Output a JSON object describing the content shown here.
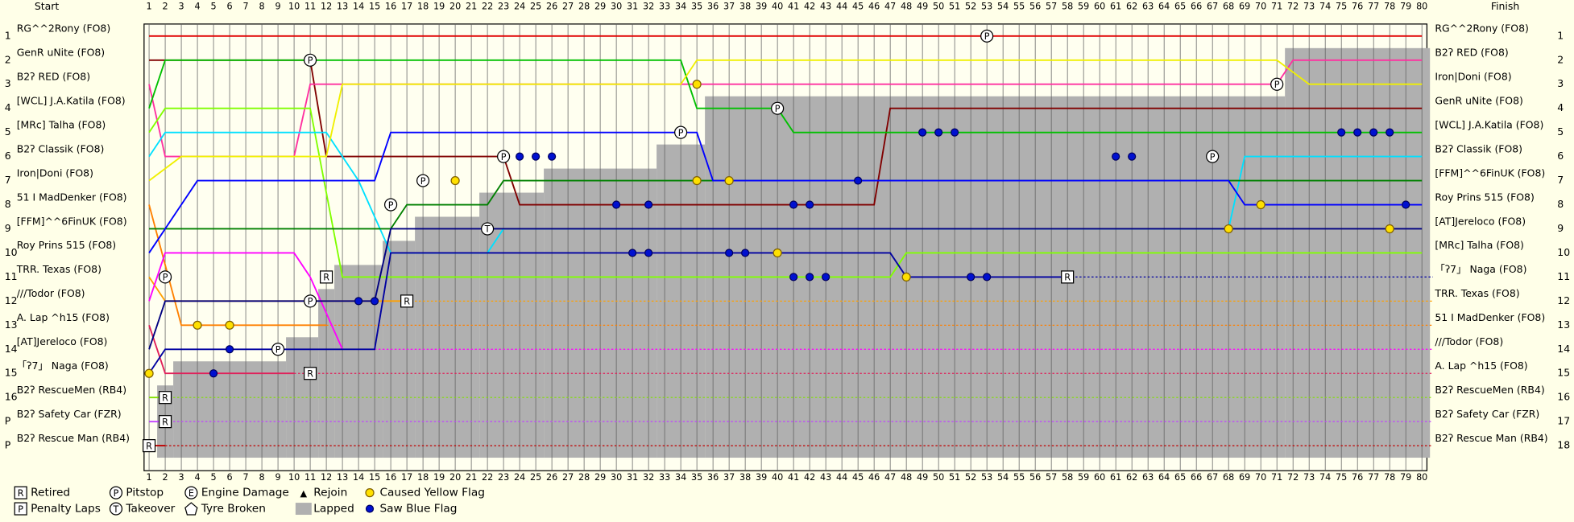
{
  "chart_data": {
    "type": "lap_chart",
    "title": "Start",
    "subtitle": "Finish",
    "xlim": [
      1,
      80
    ],
    "ylim": [
      1,
      18
    ],
    "xticks": [
      1,
      2,
      3,
      4,
      5,
      6,
      7,
      8,
      9,
      10,
      11,
      12,
      13,
      14,
      15,
      16,
      17,
      18,
      19,
      20,
      21,
      22,
      23,
      24,
      25,
      26,
      27,
      28,
      29,
      30,
      31,
      32,
      33,
      34,
      35,
      36,
      37,
      38,
      39,
      40,
      41,
      42,
      43,
      44,
      45,
      46,
      47,
      48,
      49,
      50,
      51,
      52,
      53,
      54,
      55,
      56,
      57,
      58,
      59,
      60,
      61,
      62,
      63,
      64,
      65,
      66,
      67,
      68,
      69,
      70,
      71,
      72,
      73,
      74,
      75,
      76,
      77,
      78,
      79,
      80
    ],
    "start_grid": [
      {
        "label": "1",
        "name": "RG^^2Rony (FO8)"
      },
      {
        "label": "2",
        "name": "GenR uNite (FO8)"
      },
      {
        "label": "3",
        "name": "B2ʔ RED (FO8)"
      },
      {
        "label": "4",
        "name": "[WCL] J.A.Katila (FO8)"
      },
      {
        "label": "5",
        "name": "[MRc] Talha (FO8)"
      },
      {
        "label": "6",
        "name": "B2ʔ Classik (FO8)"
      },
      {
        "label": "7",
        "name": "Iron|Doni (FO8)"
      },
      {
        "label": "8",
        "name": "51 I MadDenker (FO8)"
      },
      {
        "label": "9",
        "name": "[FFM]^^6FinUK (FO8)"
      },
      {
        "label": "10",
        "name": "Roy Prins 515 (FO8)"
      },
      {
        "label": "11",
        "name": "TRR. Texas (FO8)"
      },
      {
        "label": "12",
        "name": "///Todor (FO8)"
      },
      {
        "label": "13",
        "name": "A. Lap ^h15 (FO8)"
      },
      {
        "label": "14",
        "name": "[AT]Jereloco (FO8)"
      },
      {
        "label": "15",
        "name": "「ʔ7」 Naga (FO8)"
      },
      {
        "label": "16",
        "name": "B2ʔ RescueMen (RB4)"
      },
      {
        "label": "P",
        "name": "B2ʔ Safety Car (FZR)"
      },
      {
        "label": "P",
        "name": "B2ʔ Rescue Man (RB4)"
      }
    ],
    "finish": [
      {
        "label": "1",
        "name": "RG^^2Rony (FO8)"
      },
      {
        "label": "2",
        "name": "B2ʔ RED (FO8)"
      },
      {
        "label": "3",
        "name": "Iron|Doni (FO8)"
      },
      {
        "label": "4",
        "name": "GenR uNite (FO8)"
      },
      {
        "label": "5",
        "name": "[WCL] J.A.Katila (FO8)"
      },
      {
        "label": "6",
        "name": "B2ʔ Classik (FO8)"
      },
      {
        "label": "7",
        "name": "[FFM]^^6FinUK (FO8)"
      },
      {
        "label": "8",
        "name": "Roy Prins 515 (FO8)"
      },
      {
        "label": "9",
        "name": "[AT]Jereloco (FO8)"
      },
      {
        "label": "10",
        "name": "[MRc] Talha (FO8)"
      },
      {
        "label": "11",
        "name": "「ʔ7」 Naga (FO8)"
      },
      {
        "label": "12",
        "name": "TRR. Texas (FO8)"
      },
      {
        "label": "13",
        "name": "51 I MadDenker (FO8)"
      },
      {
        "label": "14",
        "name": "///Todor (FO8)"
      },
      {
        "label": "15",
        "name": "A. Lap ^h15 (FO8)"
      },
      {
        "label": "16",
        "name": "B2ʔ RescueMen (RB4)"
      },
      {
        "label": "17",
        "name": "B2ʔ Safety Car (FZR)"
      },
      {
        "label": "18",
        "name": "B2ʔ Rescue Man (RB4)"
      }
    ],
    "lapped": {
      "color": "#b0b0b0",
      "x": [
        2,
        3,
        10,
        12,
        13,
        16,
        18,
        22,
        26,
        33,
        36,
        72,
        80
      ],
      "values": [
        15.5,
        14.5,
        13.5,
        11.5,
        10.5,
        9.5,
        8.5,
        7.5,
        6.5,
        5.5,
        3.5,
        1.5,
        1.5
      ]
    },
    "series": [
      {
        "color": "#e00000",
        "x": [
          1,
          80
        ],
        "values": [
          1,
          1
        ]
      },
      {
        "color": "#800000",
        "x": [
          1,
          11,
          12,
          23,
          24,
          46,
          47,
          80
        ],
        "values": [
          2,
          2,
          6,
          6,
          8,
          8,
          4,
          4
        ]
      },
      {
        "color": "#ff30a0",
        "x": [
          1,
          2,
          10,
          11,
          71,
          72,
          80
        ],
        "values": [
          3,
          6,
          6,
          3,
          3,
          2,
          2
        ]
      },
      {
        "color": "#00c000",
        "x": [
          1,
          2,
          34,
          35,
          40,
          41,
          80
        ],
        "values": [
          4,
          2,
          2,
          4,
          4,
          5,
          5
        ]
      },
      {
        "color": "#80ff00",
        "x": [
          1,
          2,
          11,
          13,
          47,
          48,
          80
        ],
        "values": [
          5,
          4,
          4,
          11,
          11,
          10,
          10
        ]
      },
      {
        "color": "#00e0ff",
        "x": [
          1,
          2,
          12,
          14,
          16,
          22,
          23,
          68,
          69,
          80
        ],
        "values": [
          6,
          5,
          5,
          7,
          10,
          10,
          9,
          9,
          6,
          6
        ]
      },
      {
        "color": "#f0f000",
        "x": [
          1,
          3,
          12,
          13,
          34,
          35,
          71,
          73,
          80
        ],
        "values": [
          7,
          6,
          6,
          3,
          3,
          2,
          2,
          3,
          3
        ]
      },
      {
        "color": "#ff8000",
        "x": [
          1,
          3,
          10,
          12
        ],
        "values": [
          8,
          13,
          13,
          13
        ]
      },
      {
        "color": "#008000",
        "x": [
          1,
          2,
          16,
          17,
          22,
          23,
          80
        ],
        "values": [
          9,
          9,
          9,
          8,
          8,
          7,
          7
        ]
      },
      {
        "color": "#0000ff",
        "x": [
          1,
          3,
          4,
          15,
          16,
          35,
          36,
          68,
          69,
          80
        ],
        "values": [
          10,
          8,
          7,
          7,
          5,
          5,
          7,
          7,
          8,
          8
        ]
      },
      {
        "color": "#ffa000",
        "x": [
          1,
          2,
          16,
          17
        ],
        "values": [
          11,
          12,
          12,
          12
        ]
      },
      {
        "color": "#ff00ff",
        "x": [
          1,
          2,
          10,
          11,
          13
        ],
        "values": [
          12,
          10,
          10,
          11,
          14
        ]
      },
      {
        "color": "#e0205a",
        "x": [
          1,
          2,
          10
        ],
        "values": [
          13,
          15,
          15
        ]
      },
      {
        "color": "#000080",
        "x": [
          1,
          2,
          15,
          16,
          80
        ],
        "values": [
          14,
          12,
          12,
          9,
          9
        ]
      },
      {
        "color": "#0000a0",
        "x": [
          1,
          2,
          15,
          16,
          47,
          48,
          58
        ],
        "values": [
          15,
          14,
          14,
          10,
          10,
          11,
          11
        ]
      },
      {
        "color": "#80e000",
        "x": [
          1,
          2
        ],
        "values": [
          16,
          16
        ]
      },
      {
        "color": "#c040ff",
        "x": [
          1,
          2
        ],
        "values": [
          17,
          17
        ]
      },
      {
        "color": "#c00000",
        "x": [
          1,
          2
        ],
        "values": [
          18,
          18
        ]
      }
    ],
    "legend": [
      {
        "kind": "retired",
        "symbol": "R",
        "label": "Retired"
      },
      {
        "kind": "pitstop",
        "symbol": "P",
        "label": "Pitstop"
      },
      {
        "kind": "engine",
        "symbol": "E",
        "label": "Engine Damage"
      },
      {
        "kind": "rejoin",
        "symbol": "▲",
        "label": "Rejoin"
      },
      {
        "kind": "yellow",
        "label": "Caused Yellow Flag"
      },
      {
        "kind": "penalty",
        "symbol": "P",
        "label": "Penalty Laps"
      },
      {
        "kind": "takeover",
        "symbol": "T",
        "label": "Takeover"
      },
      {
        "kind": "tyre",
        "label": "Tyre Broken"
      },
      {
        "kind": "lapped",
        "label": "Lapped"
      },
      {
        "kind": "blue",
        "label": "Saw Blue Flag"
      }
    ],
    "events": [
      {
        "kind": "pitstop",
        "lap": 53,
        "position": 1
      },
      {
        "kind": "pitstop",
        "lap": 11,
        "position": 2
      },
      {
        "kind": "pitstop",
        "lap": 71,
        "position": 3
      },
      {
        "kind": "pitstop",
        "lap": 40,
        "position": 4
      },
      {
        "kind": "pitstop",
        "lap": 34,
        "position": 5
      },
      {
        "kind": "pitstop",
        "lap": 23,
        "position": 6
      },
      {
        "kind": "pitstop",
        "lap": 18,
        "position": 7
      },
      {
        "kind": "pitstop",
        "lap": 67,
        "position": 6
      },
      {
        "kind": "pitstop",
        "lap": 2,
        "position": 11
      },
      {
        "kind": "pitstop",
        "lap": 11,
        "position": 12
      },
      {
        "kind": "pitstop",
        "lap": 9,
        "position": 14
      },
      {
        "kind": "pitstop",
        "lap": 16,
        "position": 8
      },
      {
        "kind": "takeover",
        "lap": 22,
        "position": 9
      },
      {
        "kind": "retired",
        "lap": 58,
        "position": 11
      },
      {
        "kind": "retired",
        "lap": 17,
        "position": 12
      },
      {
        "kind": "retired",
        "lap": 12,
        "position": 11
      },
      {
        "kind": "retired",
        "lap": 2,
        "position": 16
      },
      {
        "kind": "retired",
        "lap": 2,
        "position": 17
      },
      {
        "kind": "retired",
        "lap": 1,
        "position": 18
      },
      {
        "kind": "retired",
        "lap": 11,
        "position": 15
      },
      {
        "kind": "yellow",
        "lap": 20,
        "position": 7
      },
      {
        "kind": "yellow",
        "lap": 35,
        "position": 3
      },
      {
        "kind": "yellow",
        "lap": 35,
        "position": 7
      },
      {
        "kind": "yellow",
        "lap": 37,
        "position": 7
      },
      {
        "kind": "yellow",
        "lap": 68,
        "position": 9
      },
      {
        "kind": "yellow",
        "lap": 70,
        "position": 8
      },
      {
        "kind": "yellow",
        "lap": 78,
        "position": 9
      },
      {
        "kind": "yellow",
        "lap": 48,
        "position": 11
      },
      {
        "kind": "yellow",
        "lap": 40,
        "position": 10
      },
      {
        "kind": "yellow",
        "lap": 4,
        "position": 13
      },
      {
        "kind": "yellow",
        "lap": 6,
        "position": 13
      },
      {
        "kind": "yellow",
        "lap": 1,
        "position": 15
      },
      {
        "kind": "blue",
        "lap": 24,
        "position": 6
      },
      {
        "kind": "blue",
        "lap": 25,
        "position": 6
      },
      {
        "kind": "blue",
        "lap": 26,
        "position": 6
      },
      {
        "kind": "blue",
        "lap": 30,
        "position": 8
      },
      {
        "kind": "blue",
        "lap": 32,
        "position": 8
      },
      {
        "kind": "blue",
        "lap": 41,
        "position": 8
      },
      {
        "kind": "blue",
        "lap": 42,
        "position": 8
      },
      {
        "kind": "blue",
        "lap": 45,
        "position": 7
      },
      {
        "kind": "blue",
        "lap": 49,
        "position": 5
      },
      {
        "kind": "blue",
        "lap": 50,
        "position": 5
      },
      {
        "kind": "blue",
        "lap": 51,
        "position": 5
      },
      {
        "kind": "blue",
        "lap": 75,
        "position": 5
      },
      {
        "kind": "blue",
        "lap": 76,
        "position": 5
      },
      {
        "kind": "blue",
        "lap": 77,
        "position": 5
      },
      {
        "kind": "blue",
        "lap": 78,
        "position": 5
      },
      {
        "kind": "blue",
        "lap": 79,
        "position": 8
      },
      {
        "kind": "blue",
        "lap": 61,
        "position": 6
      },
      {
        "kind": "blue",
        "lap": 62,
        "position": 6
      },
      {
        "kind": "blue",
        "lap": 31,
        "position": 10
      },
      {
        "kind": "blue",
        "lap": 32,
        "position": 10
      },
      {
        "kind": "blue",
        "lap": 37,
        "position": 10
      },
      {
        "kind": "blue",
        "lap": 38,
        "position": 10
      },
      {
        "kind": "blue",
        "lap": 41,
        "position": 11
      },
      {
        "kind": "blue",
        "lap": 42,
        "position": 11
      },
      {
        "kind": "blue",
        "lap": 43,
        "position": 11
      },
      {
        "kind": "blue",
        "lap": 52,
        "position": 11
      },
      {
        "kind": "blue",
        "lap": 53,
        "position": 11
      },
      {
        "kind": "blue",
        "lap": 5,
        "position": 15
      },
      {
        "kind": "blue",
        "lap": 6,
        "position": 14
      },
      {
        "kind": "blue",
        "lap": 14,
        "position": 12
      },
      {
        "kind": "blue",
        "lap": 15,
        "position": 12
      }
    ]
  }
}
